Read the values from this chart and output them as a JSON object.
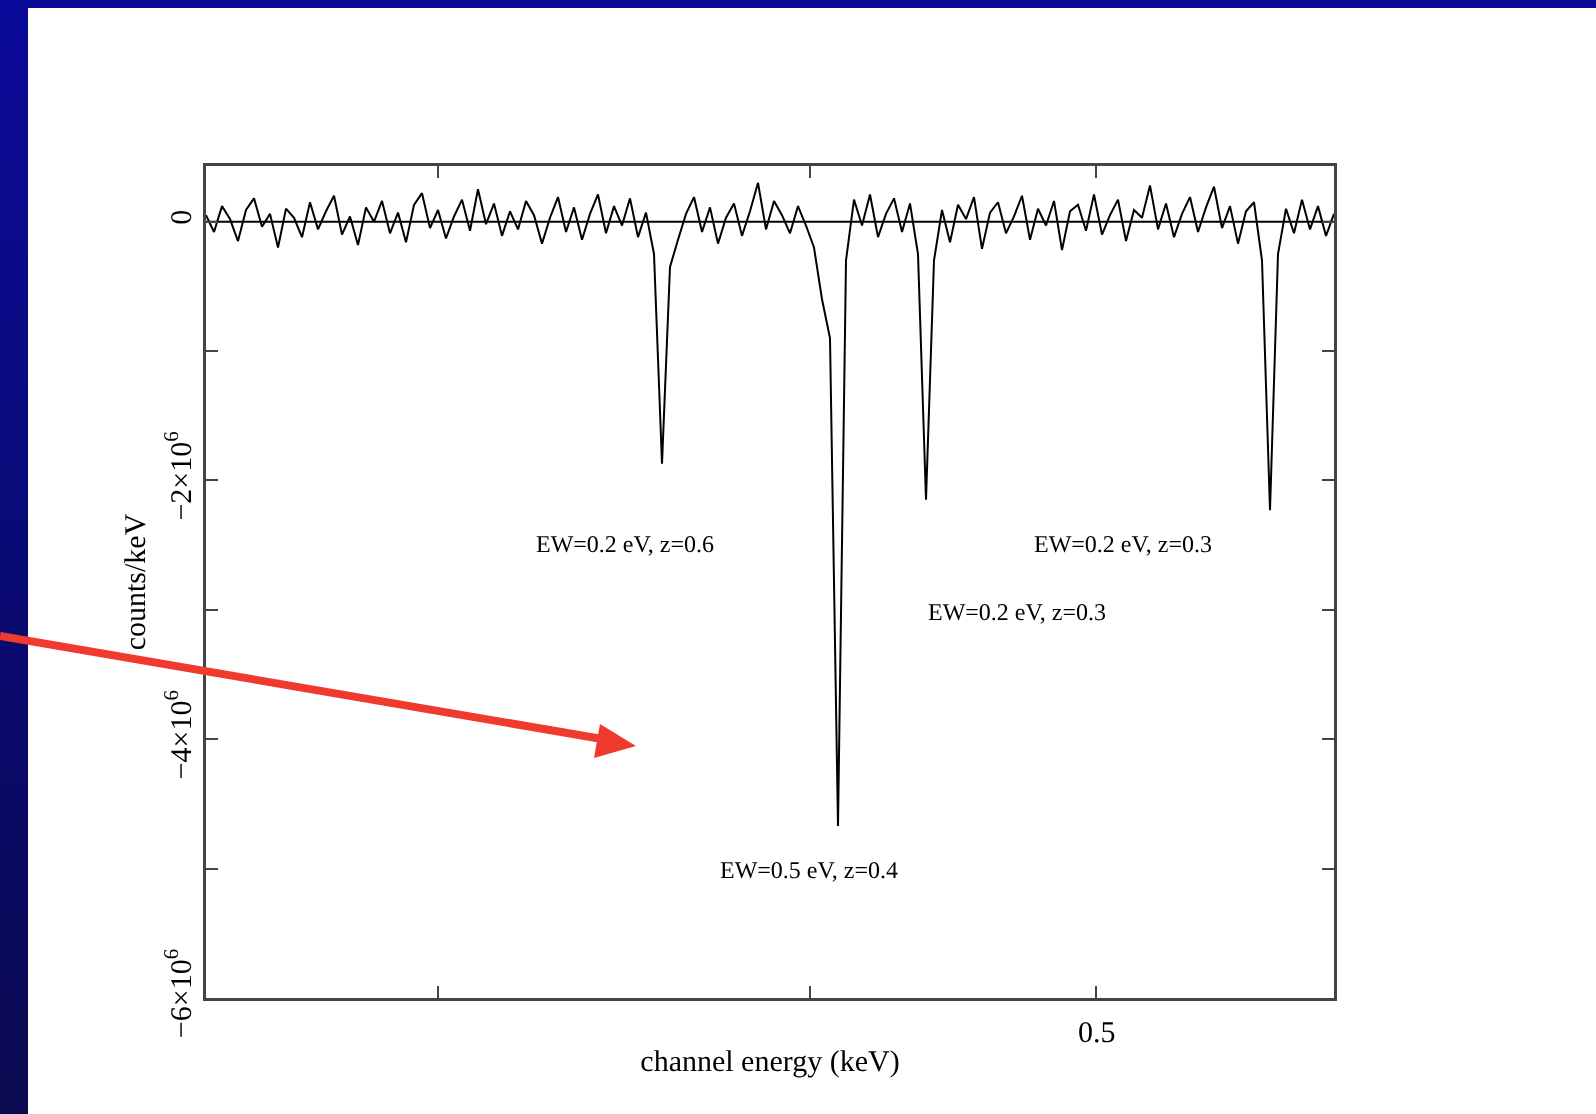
{
  "chart_data": {
    "type": "line",
    "xlabel": "channel energy (keV)",
    "ylabel": "counts/keV",
    "categories": [
      null,
      null,
      null,
      null,
      null,
      null,
      null,
      null,
      null,
      null,
      null,
      null,
      null,
      null,
      null,
      null,
      null,
      null,
      null,
      null,
      null,
      null,
      null,
      null,
      null,
      null,
      null,
      null,
      null,
      null,
      null,
      null,
      null,
      null,
      null,
      null,
      null,
      null,
      null,
      null,
      null,
      null,
      null,
      null,
      null,
      null,
      null,
      null,
      null,
      null,
      null,
      null,
      null,
      null,
      null,
      null,
      null,
      null,
      null,
      null,
      null,
      null,
      null,
      null,
      null,
      null,
      null,
      null,
      null,
      null,
      null,
      null,
      null,
      null,
      null,
      null,
      null,
      null,
      null,
      null,
      null,
      null,
      null,
      null,
      null,
      null,
      null,
      null,
      null,
      null,
      null,
      null,
      null,
      null,
      null,
      null,
      null,
      null,
      null,
      null,
      null,
      null,
      null,
      null,
      null,
      null,
      null,
      null,
      null,
      null,
      null,
      null,
      null,
      null,
      null,
      null,
      null,
      null,
      null,
      null,
      null,
      null,
      null,
      null,
      null,
      null,
      null,
      null,
      null,
      null,
      null,
      null,
      null,
      null,
      null,
      null,
      null,
      null,
      null,
      null,
      null,
      null
    ],
    "ylim": [
      -6000000,
      430000
    ],
    "yticks": [
      {
        "value": -6000000,
        "label": "−6×10$^{6}$"
      },
      {
        "value": -5000000,
        "label": null
      },
      {
        "value": -4000000,
        "label": "−4×10$^{6}$"
      },
      {
        "value": -3000000,
        "label": null
      },
      {
        "value": -2000000,
        "label": "−2×10$^{6}$"
      },
      {
        "value": -1000000,
        "label": null
      },
      {
        "value": 0,
        "label": "0"
      }
    ],
    "grid": false,
    "marker": "none",
    "line_style": "solid",
    "ref_lines": [
      {
        "axis": "y",
        "value": 0,
        "color": "#000000"
      }
    ],
    "annotations": [
      "EW=0.2 eV, z=0.6",
      "EW=0.5 eV, z=0.4",
      "EW=0.2 eV, z=0.3",
      "EW=0.2 eV, z=0.3",
      "0.5"
    ],
    "series": [
      {
        "color": "#000000",
        "values": [
          50000,
          -80000,
          120000,
          20000,
          -150000,
          90000,
          180000,
          -40000,
          60000,
          -200000,
          100000,
          30000,
          -120000,
          150000,
          -60000,
          80000,
          200000,
          -100000,
          40000,
          -180000,
          110000,
          0,
          160000,
          -90000,
          70000,
          -160000,
          130000,
          220000,
          -50000,
          90000,
          -130000,
          40000,
          170000,
          -70000,
          250000,
          -20000,
          140000,
          -110000,
          80000,
          -60000,
          160000,
          50000,
          -170000,
          30000,
          190000,
          -80000,
          110000,
          -140000,
          60000,
          210000,
          -90000,
          120000,
          -30000,
          180000,
          -120000,
          70000,
          -250000,
          -1870000,
          -350000,
          -140000,
          60000,
          190000,
          -80000,
          110000,
          -170000,
          30000,
          140000,
          -110000,
          80000,
          300000,
          -60000,
          160000,
          50000,
          -90000,
          120000,
          -30000,
          -200000,
          -600000,
          -900000,
          -4670000,
          -300000,
          170000,
          -30000,
          210000,
          -120000,
          60000,
          180000,
          -80000,
          140000,
          -250000,
          -2150000,
          -300000,
          90000,
          -160000,
          130000,
          20000,
          190000,
          -210000,
          70000,
          150000,
          -90000,
          40000,
          200000,
          -140000,
          100000,
          -30000,
          160000,
          -220000,
          80000,
          130000,
          -70000,
          210000,
          -100000,
          50000,
          170000,
          -150000,
          90000,
          30000,
          280000,
          -60000,
          140000,
          -120000,
          60000,
          190000,
          -80000,
          110000,
          270000,
          -50000,
          120000,
          -170000,
          80000,
          150000,
          -300000,
          -2230000,
          -250000,
          100000,
          -90000,
          170000,
          -60000,
          120000,
          -110000,
          60000
        ]
      }
    ]
  }
}
